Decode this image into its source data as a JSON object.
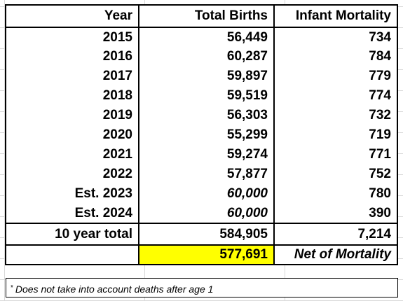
{
  "headers": {
    "year": "Year",
    "births": "Total Births",
    "mortality": "Infant Mortality"
  },
  "rows": [
    {
      "year": "2015",
      "births": "56,449",
      "mortality": "734"
    },
    {
      "year": "2016",
      "births": "60,287",
      "mortality": "784"
    },
    {
      "year": "2017",
      "births": "59,897",
      "mortality": "779"
    },
    {
      "year": "2018",
      "births": "59,519",
      "mortality": "774"
    },
    {
      "year": "2019",
      "births": "56,303",
      "mortality": "732"
    },
    {
      "year": "2020",
      "births": "55,299",
      "mortality": "719"
    },
    {
      "year": "2021",
      "births": "59,274",
      "mortality": "771"
    },
    {
      "year": "2022",
      "births": "57,877",
      "mortality": "752"
    },
    {
      "year": "Est. 2023",
      "births": "60,000",
      "mortality": "780"
    },
    {
      "year": "Est. 2024",
      "births": "60,000",
      "mortality": "390"
    }
  ],
  "total": {
    "label": "10 year total",
    "births": "584,905",
    "mortality": "7,214"
  },
  "net": {
    "value": "577,691",
    "label": "Net of Mortality"
  },
  "footnote": {
    "marker": "*",
    "text": "Does not take into account deaths after age 1"
  },
  "colors": {
    "estimate_text": "#ff0000",
    "highlight": "#ffff00",
    "gridline": "#d9d9d9"
  }
}
